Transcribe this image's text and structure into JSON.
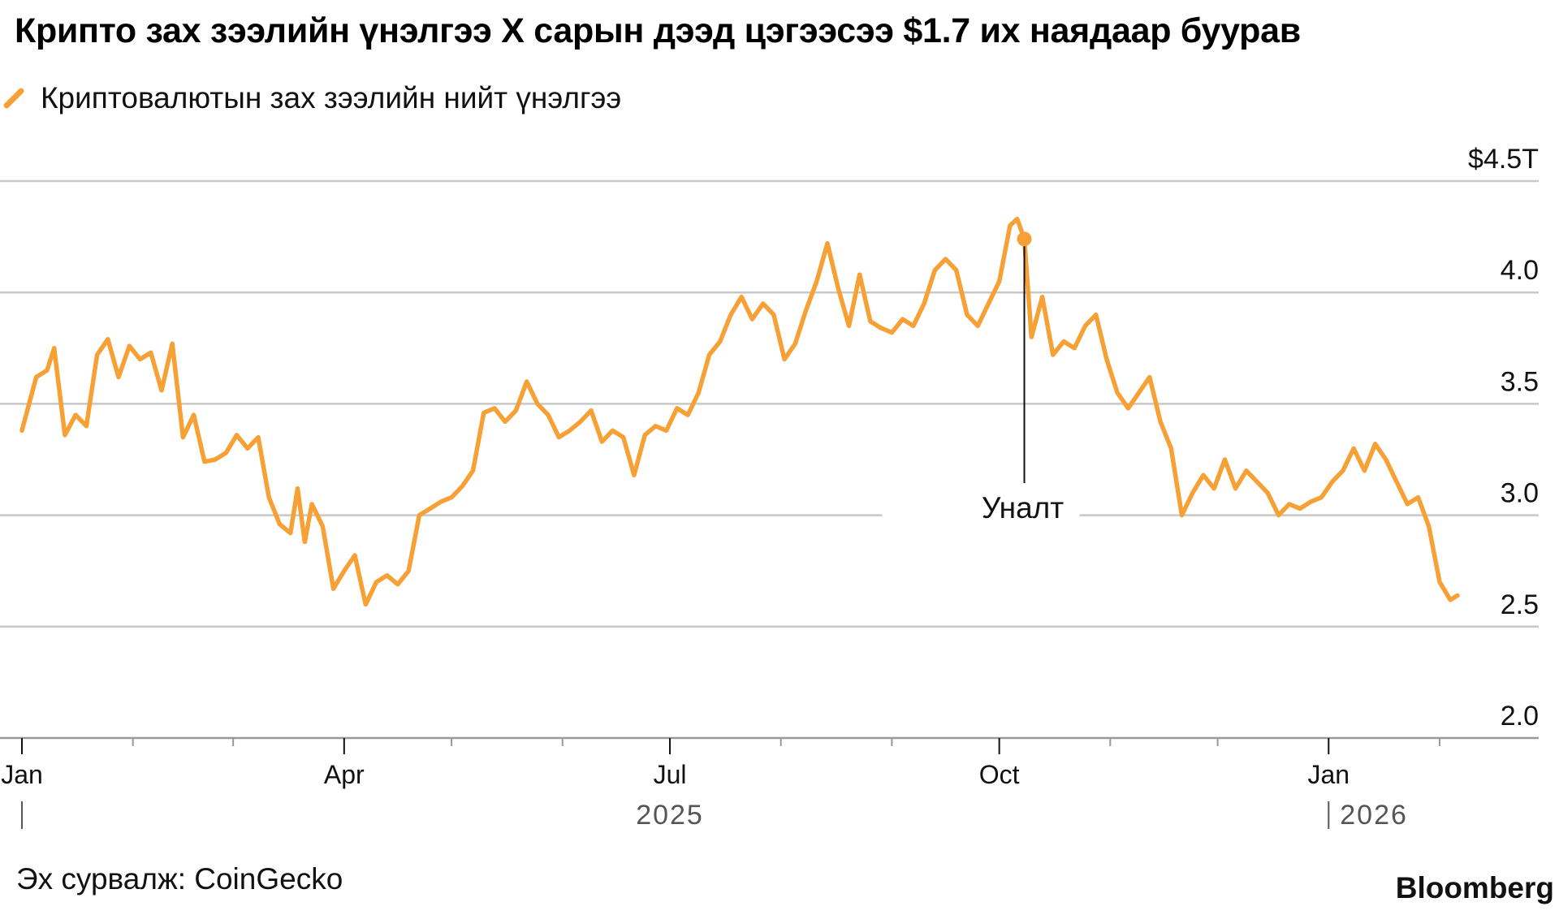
{
  "title": "Крипто зах зээлийн үнэлгээ X сарын дээд цэгээсээ $1.7 их наядаар буурав",
  "source": "Эх сурвалж: CoinGecko",
  "brand": "Bloomberg",
  "colors": {
    "series": "#f7a035",
    "grid": "#c8c8c8",
    "axis": "#999999"
  },
  "chart_data": {
    "type": "line",
    "title": "Крипто зах зээлийн үнэлгээ X сарын дээд цэгээсээ $1.7 их наядаар буурав",
    "ylim": [
      2.0,
      4.5
    ],
    "y_ticks": [
      {
        "value": 4.5,
        "label": "$4.5T"
      },
      {
        "value": 4.0,
        "label": "4.0"
      },
      {
        "value": 3.5,
        "label": "3.5"
      },
      {
        "value": 3.0,
        "label": "3.0"
      },
      {
        "value": 2.5,
        "label": "2.5"
      },
      {
        "value": 2.0,
        "label": "2.0"
      }
    ],
    "x_ticks": [
      {
        "date": "2025-01-01",
        "label": "Jan"
      },
      {
        "date": "2025-04-01",
        "label": "Apr"
      },
      {
        "date": "2025-07-01",
        "label": "Jul"
      },
      {
        "date": "2025-10-01",
        "label": "Oct"
      },
      {
        "date": "2026-01-01",
        "label": "Jan"
      }
    ],
    "minor_ticks": [
      "2025-02-01",
      "2025-03-01",
      "2025-05-01",
      "2025-06-01",
      "2025-08-01",
      "2025-09-01",
      "2025-11-01",
      "2025-12-01",
      "2026-02-01"
    ],
    "year_labels": [
      {
        "date": "2025-01-01",
        "label": "2025",
        "label_at": "2025-07-01"
      },
      {
        "date": "2026-01-01",
        "label": "2026",
        "label_at": "2026-01-01"
      }
    ],
    "grid": true,
    "legend": {
      "placement": "top-left",
      "label": "Криптовалютын зах зээлийн нийт үнэлгээ"
    },
    "annotation": {
      "label": "Уналт",
      "date": "2025-10-08",
      "value": 4.24
    },
    "series": [
      {
        "name": "Криптовалютын зах зээлийн нийт үнэлгээ",
        "points": [
          [
            "2025-01-01",
            3.38
          ],
          [
            "2025-01-05",
            3.62
          ],
          [
            "2025-01-08",
            3.65
          ],
          [
            "2025-01-10",
            3.75
          ],
          [
            "2025-01-13",
            3.36
          ],
          [
            "2025-01-16",
            3.45
          ],
          [
            "2025-01-19",
            3.4
          ],
          [
            "2025-01-22",
            3.72
          ],
          [
            "2025-01-25",
            3.79
          ],
          [
            "2025-01-28",
            3.62
          ],
          [
            "2025-01-31",
            3.76
          ],
          [
            "2025-02-03",
            3.7
          ],
          [
            "2025-02-06",
            3.73
          ],
          [
            "2025-02-09",
            3.56
          ],
          [
            "2025-02-12",
            3.77
          ],
          [
            "2025-02-15",
            3.35
          ],
          [
            "2025-02-18",
            3.45
          ],
          [
            "2025-02-21",
            3.24
          ],
          [
            "2025-02-24",
            3.25
          ],
          [
            "2025-02-27",
            3.28
          ],
          [
            "2025-03-02",
            3.36
          ],
          [
            "2025-03-05",
            3.3
          ],
          [
            "2025-03-08",
            3.35
          ],
          [
            "2025-03-11",
            3.08
          ],
          [
            "2025-03-14",
            2.96
          ],
          [
            "2025-03-17",
            2.92
          ],
          [
            "2025-03-19",
            3.12
          ],
          [
            "2025-03-21",
            2.88
          ],
          [
            "2025-03-23",
            3.05
          ],
          [
            "2025-03-26",
            2.95
          ],
          [
            "2025-03-29",
            2.67
          ],
          [
            "2025-04-01",
            2.75
          ],
          [
            "2025-04-04",
            2.82
          ],
          [
            "2025-04-07",
            2.6
          ],
          [
            "2025-04-10",
            2.7
          ],
          [
            "2025-04-13",
            2.73
          ],
          [
            "2025-04-16",
            2.69
          ],
          [
            "2025-04-19",
            2.75
          ],
          [
            "2025-04-22",
            3.0
          ],
          [
            "2025-04-25",
            3.03
          ],
          [
            "2025-04-28",
            3.06
          ],
          [
            "2025-05-01",
            3.08
          ],
          [
            "2025-05-04",
            3.13
          ],
          [
            "2025-05-07",
            3.2
          ],
          [
            "2025-05-10",
            3.46
          ],
          [
            "2025-05-13",
            3.48
          ],
          [
            "2025-05-16",
            3.42
          ],
          [
            "2025-05-19",
            3.47
          ],
          [
            "2025-05-22",
            3.6
          ],
          [
            "2025-05-25",
            3.5
          ],
          [
            "2025-05-28",
            3.45
          ],
          [
            "2025-05-31",
            3.35
          ],
          [
            "2025-06-03",
            3.38
          ],
          [
            "2025-06-06",
            3.42
          ],
          [
            "2025-06-09",
            3.47
          ],
          [
            "2025-06-12",
            3.33
          ],
          [
            "2025-06-15",
            3.38
          ],
          [
            "2025-06-18",
            3.35
          ],
          [
            "2025-06-21",
            3.18
          ],
          [
            "2025-06-24",
            3.36
          ],
          [
            "2025-06-27",
            3.4
          ],
          [
            "2025-06-30",
            3.38
          ],
          [
            "2025-07-03",
            3.48
          ],
          [
            "2025-07-06",
            3.45
          ],
          [
            "2025-07-09",
            3.55
          ],
          [
            "2025-07-12",
            3.72
          ],
          [
            "2025-07-15",
            3.78
          ],
          [
            "2025-07-18",
            3.9
          ],
          [
            "2025-07-21",
            3.98
          ],
          [
            "2025-07-24",
            3.88
          ],
          [
            "2025-07-27",
            3.95
          ],
          [
            "2025-07-30",
            3.9
          ],
          [
            "2025-08-02",
            3.7
          ],
          [
            "2025-08-05",
            3.77
          ],
          [
            "2025-08-08",
            3.92
          ],
          [
            "2025-08-11",
            4.05
          ],
          [
            "2025-08-14",
            4.22
          ],
          [
            "2025-08-17",
            4.02
          ],
          [
            "2025-08-20",
            3.85
          ],
          [
            "2025-08-23",
            4.08
          ],
          [
            "2025-08-26",
            3.87
          ],
          [
            "2025-08-29",
            3.84
          ],
          [
            "2025-09-01",
            3.82
          ],
          [
            "2025-09-04",
            3.88
          ],
          [
            "2025-09-07",
            3.85
          ],
          [
            "2025-09-10",
            3.95
          ],
          [
            "2025-09-13",
            4.1
          ],
          [
            "2025-09-16",
            4.15
          ],
          [
            "2025-09-19",
            4.1
          ],
          [
            "2025-09-22",
            3.9
          ],
          [
            "2025-09-25",
            3.85
          ],
          [
            "2025-09-28",
            3.95
          ],
          [
            "2025-10-01",
            4.05
          ],
          [
            "2025-10-04",
            4.3
          ],
          [
            "2025-10-06",
            4.33
          ],
          [
            "2025-10-08",
            4.24
          ],
          [
            "2025-10-10",
            3.8
          ],
          [
            "2025-10-13",
            3.98
          ],
          [
            "2025-10-16",
            3.72
          ],
          [
            "2025-10-19",
            3.78
          ],
          [
            "2025-10-22",
            3.75
          ],
          [
            "2025-10-25",
            3.85
          ],
          [
            "2025-10-28",
            3.9
          ],
          [
            "2025-10-31",
            3.7
          ],
          [
            "2025-11-03",
            3.55
          ],
          [
            "2025-11-06",
            3.48
          ],
          [
            "2025-11-09",
            3.55
          ],
          [
            "2025-11-12",
            3.62
          ],
          [
            "2025-11-15",
            3.42
          ],
          [
            "2025-11-18",
            3.3
          ],
          [
            "2025-11-21",
            3.0
          ],
          [
            "2025-11-24",
            3.1
          ],
          [
            "2025-11-27",
            3.18
          ],
          [
            "2025-11-30",
            3.12
          ],
          [
            "2025-12-03",
            3.25
          ],
          [
            "2025-12-06",
            3.12
          ],
          [
            "2025-12-09",
            3.2
          ],
          [
            "2025-12-12",
            3.15
          ],
          [
            "2025-12-15",
            3.1
          ],
          [
            "2025-12-18",
            3.0
          ],
          [
            "2025-12-21",
            3.05
          ],
          [
            "2025-12-24",
            3.03
          ],
          [
            "2025-12-27",
            3.06
          ],
          [
            "2025-12-30",
            3.08
          ],
          [
            "2026-01-02",
            3.15
          ],
          [
            "2026-01-05",
            3.2
          ],
          [
            "2026-01-08",
            3.3
          ],
          [
            "2026-01-11",
            3.2
          ],
          [
            "2026-01-14",
            3.32
          ],
          [
            "2026-01-17",
            3.25
          ],
          [
            "2026-01-20",
            3.15
          ],
          [
            "2026-01-23",
            3.05
          ],
          [
            "2026-01-26",
            3.08
          ],
          [
            "2026-01-29",
            2.95
          ],
          [
            "2026-02-01",
            2.7
          ],
          [
            "2026-02-04",
            2.62
          ],
          [
            "2026-02-06",
            2.64
          ]
        ]
      }
    ]
  }
}
